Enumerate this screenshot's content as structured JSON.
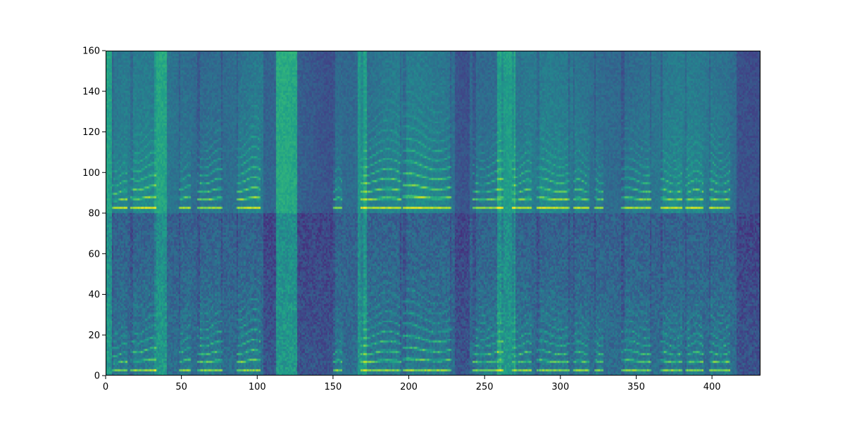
{
  "chart_data": {
    "type": "heatmap",
    "title": "",
    "xlabel": "",
    "ylabel": "",
    "xlim": [
      0,
      432
    ],
    "ylim": [
      0,
      160
    ],
    "x_ticks": [
      0,
      50,
      100,
      150,
      200,
      250,
      300,
      350,
      400
    ],
    "y_ticks": [
      0,
      20,
      40,
      60,
      80,
      100,
      120,
      140,
      160
    ],
    "colormap": "viridis",
    "grid": false,
    "legend": "none",
    "n_frames": 432,
    "n_bins": 160,
    "panel_split_bin": 80,
    "voiced_segments": [
      {
        "start": 4,
        "end": 14,
        "f0": 4.0,
        "harmonics": 6
      },
      {
        "start": 16,
        "end": 33,
        "f0": 5.0,
        "harmonics": 7
      },
      {
        "start": 48,
        "end": 56,
        "f0": 5.0,
        "harmonics": 5
      },
      {
        "start": 60,
        "end": 77,
        "f0": 4.4,
        "harmonics": 9
      },
      {
        "start": 86,
        "end": 102,
        "f0": 4.6,
        "harmonics": 9
      },
      {
        "start": 150,
        "end": 156,
        "f0": 4.5,
        "harmonics": 5
      },
      {
        "start": 168,
        "end": 195,
        "f0": 4.4,
        "harmonics": 10
      },
      {
        "start": 196,
        "end": 228,
        "f0": 5.2,
        "harmonics": 9
      },
      {
        "start": 242,
        "end": 262,
        "f0": 4.3,
        "harmonics": 8
      },
      {
        "start": 268,
        "end": 281,
        "f0": 4.2,
        "harmonics": 8
      },
      {
        "start": 284,
        "end": 306,
        "f0": 4.5,
        "harmonics": 7
      },
      {
        "start": 308,
        "end": 319,
        "f0": 4.3,
        "harmonics": 7
      },
      {
        "start": 322,
        "end": 328,
        "f0": 4.4,
        "harmonics": 6
      },
      {
        "start": 340,
        "end": 360,
        "f0": 4.5,
        "harmonics": 7
      },
      {
        "start": 366,
        "end": 380,
        "f0": 4.3,
        "harmonics": 7
      },
      {
        "start": 382,
        "end": 394,
        "f0": 4.2,
        "harmonics": 7
      },
      {
        "start": 398,
        "end": 412,
        "f0": 4.3,
        "harmonics": 8
      }
    ],
    "bright_bands": [
      {
        "start": 0,
        "end": 4
      },
      {
        "start": 32,
        "end": 40
      },
      {
        "start": 112,
        "end": 126
      },
      {
        "start": 166,
        "end": 172
      },
      {
        "start": 258,
        "end": 270
      }
    ],
    "dark_gaps": [
      {
        "start": 104,
        "end": 112
      },
      {
        "start": 126,
        "end": 150
      },
      {
        "start": 230,
        "end": 240
      },
      {
        "start": 416,
        "end": 432
      }
    ]
  }
}
